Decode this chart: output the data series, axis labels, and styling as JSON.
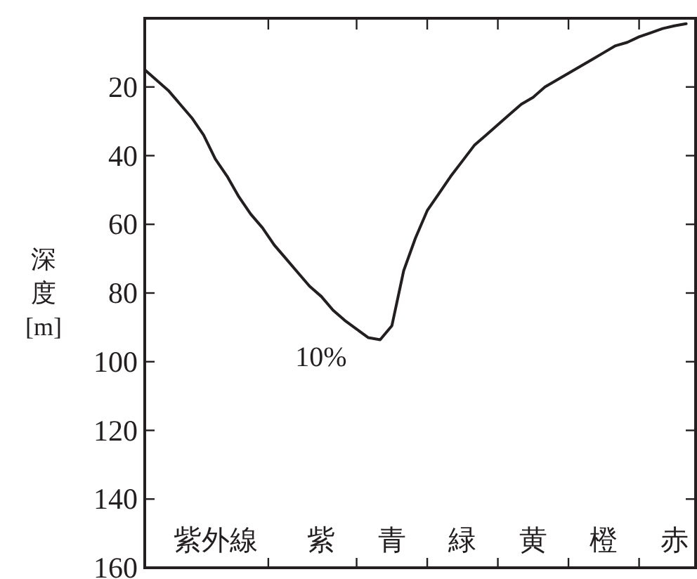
{
  "chart_data": {
    "type": "line",
    "ylabel": "深度[m]",
    "categories": [
      null,
      null,
      null,
      null,
      null,
      null,
      "紫外線",
      null,
      null,
      null,
      null,
      null,
      null,
      null,
      null,
      "紫",
      null,
      null,
      null,
      null,
      null,
      "青",
      null,
      null,
      null,
      null,
      null,
      "緑",
      null,
      null,
      null,
      null,
      null,
      "黄",
      null,
      null,
      null,
      null,
      null,
      "橙",
      null,
      null,
      null,
      null,
      null,
      "赤",
      null
    ],
    "ylim": [
      160,
      0
    ],
    "yticks": [
      20,
      40,
      60,
      80,
      100,
      120,
      140,
      160
    ],
    "annotations": [
      "10%"
    ],
    "series": [
      {
        "color": "#231f20",
        "values": [
          15,
          18,
          21,
          25,
          29,
          34,
          41,
          46,
          52,
          57,
          61,
          66,
          70,
          74,
          78,
          81,
          85,
          88,
          90.5,
          93,
          93.6,
          89.5,
          73.5,
          64,
          56,
          51,
          46,
          41.5,
          37,
          34,
          31,
          28,
          25,
          23,
          20,
          18,
          16,
          14,
          12,
          10,
          8,
          7,
          5.4,
          4.2,
          3,
          2.2,
          1.6
        ]
      }
    ]
  }
}
